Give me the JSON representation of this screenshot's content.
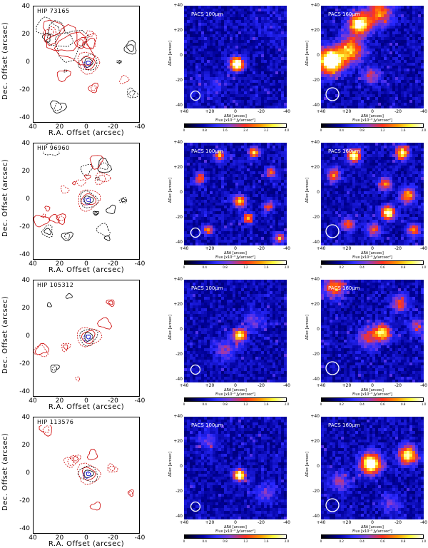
{
  "rows": [
    {
      "source_label": "HIP 73165",
      "contour_ylabel": "Dec. Offset (arcsec)",
      "contour_xlabel": "R.A. Offset (arcsec)",
      "contour_yticks": [
        "40",
        "20",
        "0",
        "-20",
        "-40"
      ],
      "contour_xticks": [
        "40",
        "20",
        "0",
        "-20",
        "-40"
      ],
      "maps": [
        {
          "label": "PACS 100µm",
          "cbar_ticks": [
            "0",
            "0.8",
            "1.6",
            "2.4",
            "3.2",
            "4.0"
          ]
        },
        {
          "label": "PACS 160µm",
          "cbar_ticks": [
            "0",
            "0.4",
            "0.8",
            "1.2",
            "1.6",
            "2.0"
          ]
        }
      ]
    },
    {
      "source_label": "HIP 96960",
      "contour_ylabel": "Dec. Offset (arcsec)",
      "contour_xlabel": "R.A. Offset (arcsec)",
      "contour_yticks": [
        "40",
        "20",
        "0",
        "-20",
        "-40"
      ],
      "contour_xticks": [
        "40",
        "20",
        "0",
        "-20",
        "-40"
      ],
      "maps": [
        {
          "label": "PACS 100µm",
          "cbar_ticks": [
            "0",
            "0.4",
            "0.8",
            "1.2",
            "1.6",
            "2.0"
          ]
        },
        {
          "label": "PACS 160µm",
          "cbar_ticks": [
            "0",
            "0.2",
            "0.4",
            "0.6",
            "0.8",
            "1.0"
          ]
        }
      ]
    },
    {
      "source_label": "HIP 105312",
      "contour_ylabel": "Dec. Offset (arcsec)",
      "contour_xlabel": "R.A. Offset (arcsec)",
      "contour_yticks": [
        "40",
        "20",
        "0",
        "-20",
        "-40"
      ],
      "contour_xticks": [
        "40",
        "20",
        "0",
        "-20",
        "-40"
      ],
      "maps": [
        {
          "label": "PACS 100µm",
          "cbar_ticks": [
            "0",
            "0.4",
            "0.8",
            "1.2",
            "1.6",
            "2.0"
          ]
        },
        {
          "label": "PACS 160µm",
          "cbar_ticks": [
            "0",
            "0.2",
            "0.4",
            "0.6",
            "0.8",
            "1.0"
          ]
        }
      ]
    },
    {
      "source_label": "HIP 113576",
      "contour_ylabel": "Dec. Offset (arcsec)",
      "contour_xlabel": "R.A. Offset (arcsec)",
      "contour_yticks": [
        "40",
        "20",
        "0",
        "-20",
        "-40"
      ],
      "contour_xticks": [
        "40",
        "20",
        "0",
        "-20",
        "-40"
      ],
      "maps": [
        {
          "label": "PACS 100µm",
          "cbar_ticks": [
            "0",
            "0.4",
            "0.8",
            "1.2",
            "1.6",
            "2.0"
          ]
        },
        {
          "label": "PACS 160µm",
          "cbar_ticks": [
            "0",
            "0.2",
            "0.4",
            "0.6",
            "0.8",
            "1.0"
          ]
        }
      ]
    }
  ],
  "map_axes": {
    "ylabel": "ΔDec [arcsec]",
    "xlabel": "ΔRA [arcsec]",
    "cbar_label": "Flux [x10⁻³ Jy/arcsec²]",
    "yticks": [
      "+40",
      "+20",
      "0",
      "-20",
      "-40"
    ],
    "xticks": [
      "+40",
      "+20",
      "0",
      "-20",
      "-40"
    ]
  },
  "colors": {
    "contour_red": "#cc0000",
    "contour_black": "#000000",
    "contour_blue": "#0000cc",
    "map_background": "#000033"
  }
}
